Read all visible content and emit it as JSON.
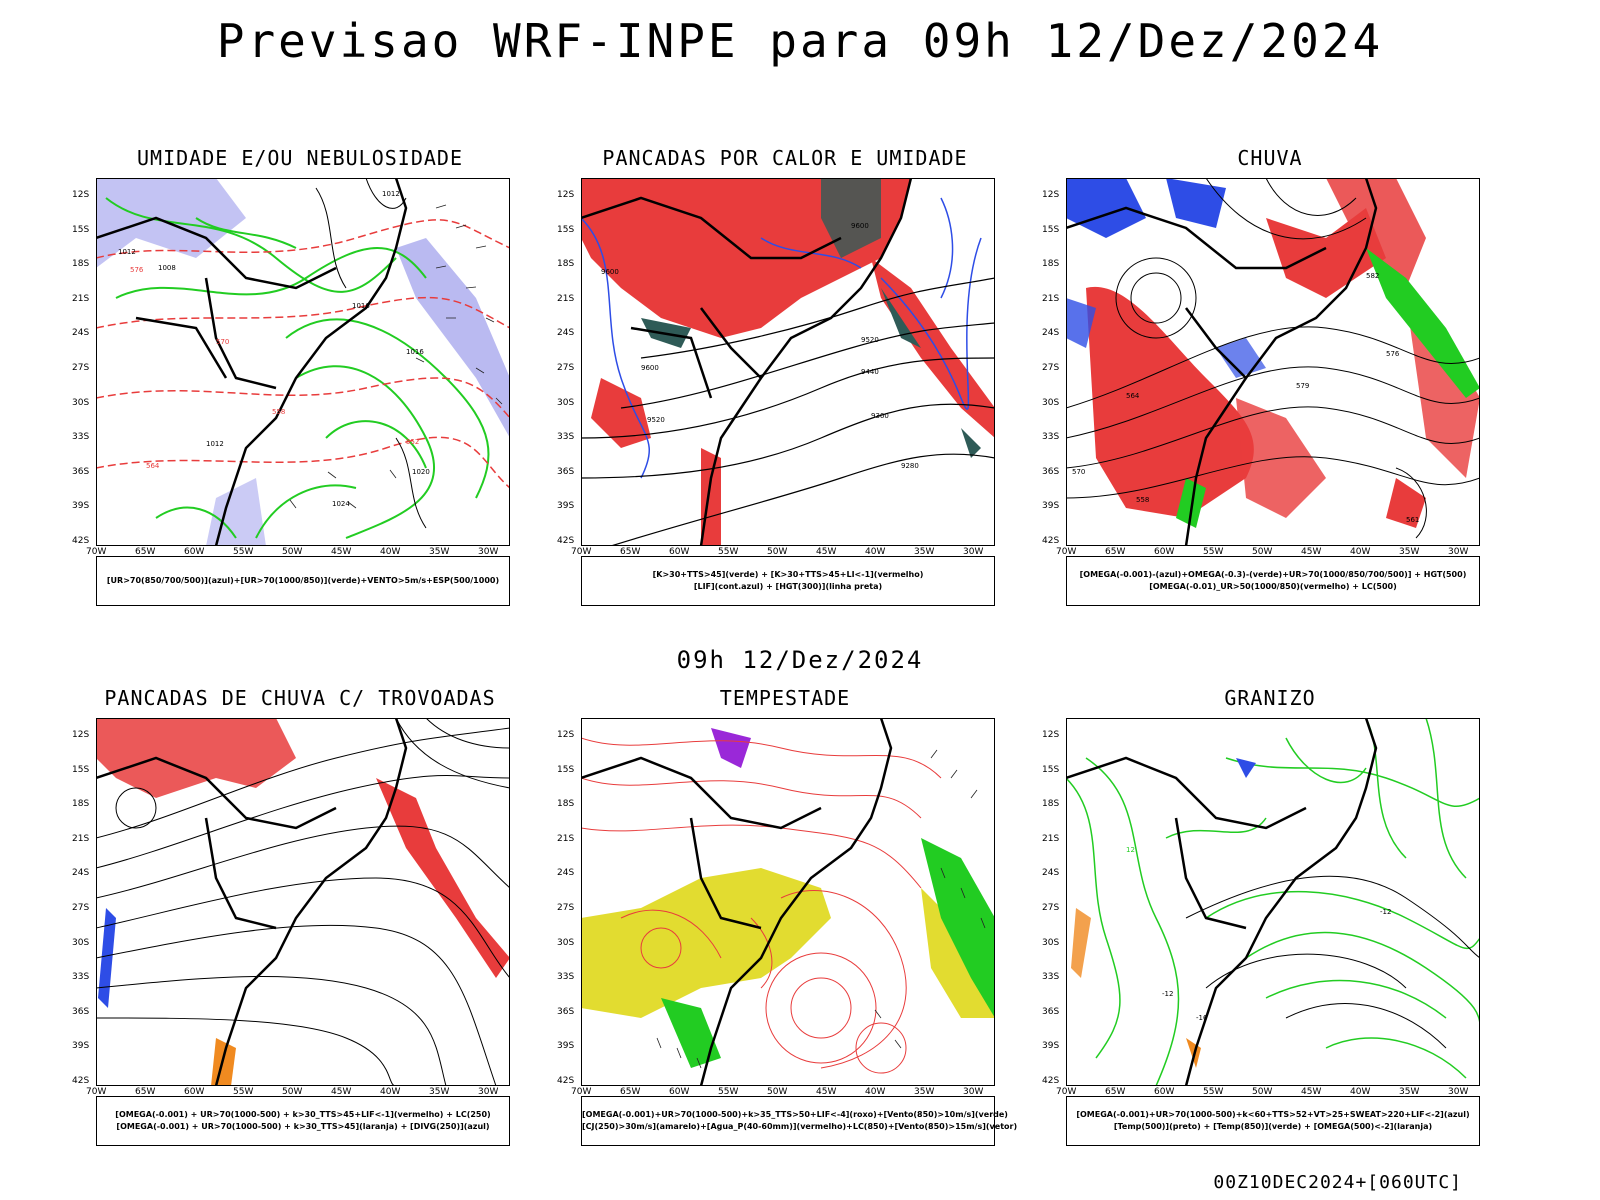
{
  "title": "Previsao WRF-INPE  para 09h 12/Dez/2024",
  "mid_time": "09h 12/Dez/2024",
  "footer": "00Z10DEC2024+[060UTC]",
  "lat_labels": [
    "12S",
    "15S",
    "18S",
    "21S",
    "24S",
    "27S",
    "30S",
    "33S",
    "36S",
    "39S",
    "42S"
  ],
  "lon_labels": [
    "70W",
    "65W",
    "60W",
    "55W",
    "50W",
    "45W",
    "40W",
    "35W",
    "30W"
  ],
  "panels": [
    {
      "title": "UMIDADE E/OU NEBULOSIDADE",
      "legend": [
        "[UR>70(850/700/500)](azul)+[UR>70(1000/850)](verde)+VENTO>5m/s+ESP(500/1000)"
      ]
    },
    {
      "title": "PANCADAS POR CALOR E UMIDADE",
      "legend": [
        "[K>30+TTS>45](verde) + [K>30+TTS>45+LI<-1](vermelho)",
        "[LIF](cont.azul) + [HGT(300)](linha preta)"
      ]
    },
    {
      "title": "CHUVA",
      "legend": [
        "[OMEGA(-0.001)-(azul)+OMEGA(-0.3)-(verde)+UR>70(1000/850/700/500)] + HGT(500)",
        "[OMEGA(-0.01)_UR>50(1000/850)(vermelho) + LC(500)"
      ]
    },
    {
      "title": "PANCADAS DE CHUVA C/ TROVOADAS",
      "legend": [
        "[OMEGA(-0.001) + UR>70(1000-500) + k>30_TTS>45+LIF<-1](vermelho) + LC(250)",
        "[OMEGA(-0.001) + UR>70(1000-500) + k>30_TTS>45](laranja) + [DIVG(250)](azul)"
      ]
    },
    {
      "title": "TEMPESTADE",
      "legend": [
        "[OMEGA(-0.001)+UR>70(1000-500)+k>35_TTS>50+LIF<-4](roxo)+[Vento(850)>10m/s](verde)",
        "[CJ(250)>30m/s](amarelo)+[Agua_P(40-60mm)](vermelho)+LC(850)+[Vento(850)>15m/s](vetor)"
      ]
    },
    {
      "title": "GRANIZO",
      "legend": [
        "[OMEGA(-0.001)+UR>70(1000-500)+k<60+TTS>52+VT>25+SWEAT>220+LIF<-2](azul)",
        "[Temp(500)](preto) + [Temp(850)](verde) + [OMEGA(500)<-2](laranja)"
      ]
    }
  ],
  "contour_labels": {
    "p1": [
      "1012",
      "1012",
      "1008",
      "1016",
      "1012",
      "1016",
      "1020",
      "1024",
      "576",
      "570",
      "564",
      "558",
      "552"
    ],
    "p2": [
      "9600",
      "9600",
      "9520",
      "9440",
      "9360",
      "9280",
      "9600",
      "9520"
    ],
    "p3": [
      "582",
      "576",
      "570",
      "564",
      "558",
      "561",
      "579"
    ],
    "p6": [
      "-12",
      "-12",
      "-16",
      "12"
    ]
  },
  "colors": {
    "red": "#e83c3c",
    "green": "#22cc22",
    "blue": "#2e4de6",
    "lavender": "#a9a9ee",
    "dark_teal": "#2f5b57",
    "yellow": "#e2dc30",
    "orange": "#f08a20",
    "purple": "#9a28d8"
  }
}
